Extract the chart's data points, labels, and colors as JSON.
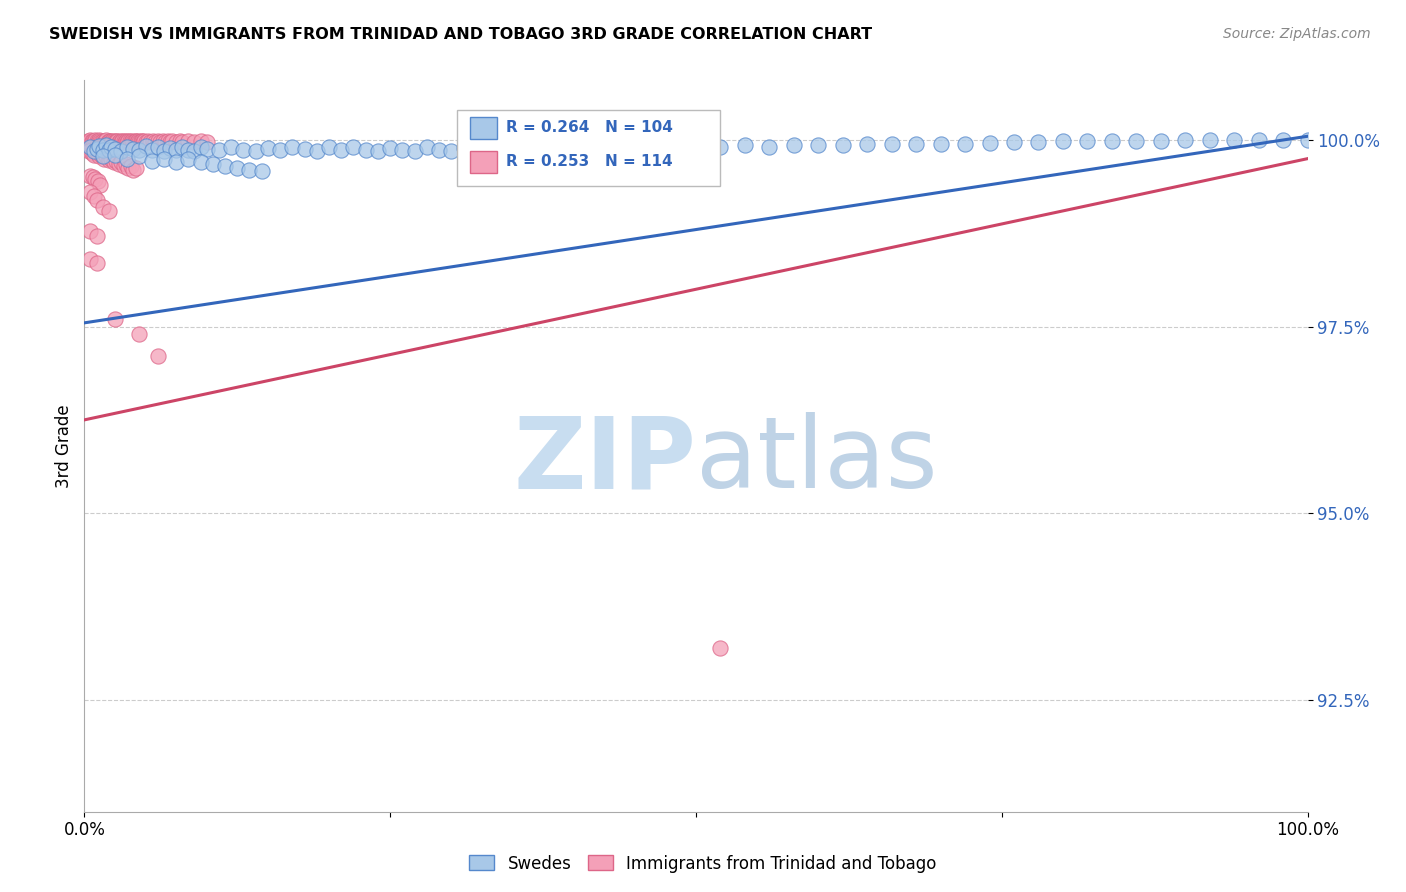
{
  "title": "SWEDISH VS IMMIGRANTS FROM TRINIDAD AND TOBAGO 3RD GRADE CORRELATION CHART",
  "source": "Source: ZipAtlas.com",
  "ylabel": "3rd Grade",
  "blue_R": 0.264,
  "blue_N": 104,
  "pink_R": 0.253,
  "pink_N": 114,
  "blue_color": "#a8c8e8",
  "pink_color": "#f4a0b8",
  "blue_edge_color": "#5588cc",
  "pink_edge_color": "#dd6688",
  "blue_line_color": "#3366bb",
  "pink_line_color": "#cc4466",
  "legend_blue_label": "Swedes",
  "legend_pink_label": "Immigrants from Trinidad and Tobago",
  "xmin": 0.0,
  "xmax": 1.0,
  "ymin": 0.91,
  "ymax": 1.008,
  "yticks": [
    0.925,
    0.95,
    0.975,
    1.0
  ],
  "ytick_labels": [
    "92.5%",
    "95.0%",
    "97.5%",
    "100.0%"
  ],
  "blue_trend_x": [
    0.0,
    1.0
  ],
  "blue_trend_y": [
    0.9755,
    1.0005
  ],
  "pink_trend_x": [
    0.0,
    1.0
  ],
  "pink_trend_y": [
    0.9625,
    0.9975
  ],
  "blue_scatter_x": [
    0.005,
    0.008,
    0.01,
    0.012,
    0.015,
    0.018,
    0.02,
    0.022,
    0.025,
    0.03,
    0.035,
    0.04,
    0.045,
    0.05,
    0.055,
    0.06,
    0.065,
    0.07,
    0.075,
    0.08,
    0.085,
    0.09,
    0.095,
    0.1,
    0.11,
    0.12,
    0.13,
    0.14,
    0.15,
    0.16,
    0.17,
    0.18,
    0.19,
    0.2,
    0.21,
    0.22,
    0.23,
    0.24,
    0.25,
    0.26,
    0.27,
    0.28,
    0.29,
    0.3,
    0.31,
    0.32,
    0.33,
    0.34,
    0.35,
    0.36,
    0.37,
    0.38,
    0.39,
    0.4,
    0.41,
    0.42,
    0.43,
    0.44,
    0.45,
    0.46,
    0.47,
    0.48,
    0.49,
    0.5,
    0.52,
    0.54,
    0.56,
    0.58,
    0.6,
    0.62,
    0.64,
    0.66,
    0.68,
    0.7,
    0.72,
    0.74,
    0.76,
    0.78,
    0.8,
    0.82,
    0.84,
    0.86,
    0.88,
    0.9,
    0.92,
    0.94,
    0.96,
    0.98,
    1.0,
    0.015,
    0.025,
    0.035,
    0.045,
    0.055,
    0.065,
    0.075,
    0.085,
    0.095,
    0.105,
    0.115,
    0.125,
    0.135,
    0.145
  ],
  "blue_scatter_y": [
    0.999,
    0.9985,
    0.9988,
    0.9992,
    0.9987,
    0.9993,
    0.9986,
    0.9991,
    0.9988,
    0.9985,
    0.999,
    0.9988,
    0.9986,
    0.9992,
    0.9987,
    0.9991,
    0.9985,
    0.9989,
    0.9986,
    0.9991,
    0.9987,
    0.9985,
    0.999,
    0.9988,
    0.9986,
    0.9991,
    0.9987,
    0.9985,
    0.9989,
    0.9986,
    0.9991,
    0.9988,
    0.9985,
    0.999,
    0.9986,
    0.9991,
    0.9987,
    0.9985,
    0.9989,
    0.9987,
    0.9985,
    0.999,
    0.9987,
    0.9985,
    0.9989,
    0.9987,
    0.9986,
    0.9991,
    0.9988,
    0.9986,
    0.9991,
    0.9988,
    0.9986,
    0.9991,
    0.9989,
    0.9987,
    0.999,
    0.9988,
    0.9992,
    0.999,
    0.9988,
    0.9992,
    0.999,
    0.9993,
    0.9991,
    0.9993,
    0.9991,
    0.9993,
    0.9993,
    0.9993,
    0.9994,
    0.9994,
    0.9994,
    0.9995,
    0.9995,
    0.9996,
    0.9997,
    0.9997,
    0.9998,
    0.9998,
    0.9998,
    0.9999,
    0.9999,
    1.0,
    1.0,
    1.0,
    1.0,
    1.0,
    1.0,
    0.9978,
    0.998,
    0.9975,
    0.9978,
    0.9972,
    0.9975,
    0.997,
    0.9974,
    0.997,
    0.9968,
    0.9965,
    0.9963,
    0.996,
    0.9958
  ],
  "pink_scatter_x": [
    0.003,
    0.004,
    0.005,
    0.006,
    0.007,
    0.008,
    0.009,
    0.01,
    0.011,
    0.012,
    0.013,
    0.014,
    0.015,
    0.016,
    0.017,
    0.018,
    0.019,
    0.02,
    0.021,
    0.022,
    0.023,
    0.024,
    0.025,
    0.026,
    0.027,
    0.028,
    0.029,
    0.03,
    0.031,
    0.032,
    0.033,
    0.034,
    0.035,
    0.036,
    0.037,
    0.038,
    0.039,
    0.04,
    0.041,
    0.042,
    0.043,
    0.044,
    0.045,
    0.046,
    0.047,
    0.048,
    0.049,
    0.05,
    0.052,
    0.054,
    0.056,
    0.058,
    0.06,
    0.062,
    0.064,
    0.066,
    0.068,
    0.07,
    0.072,
    0.075,
    0.078,
    0.08,
    0.085,
    0.09,
    0.095,
    0.1,
    0.004,
    0.006,
    0.008,
    0.01,
    0.012,
    0.014,
    0.016,
    0.018,
    0.02,
    0.022,
    0.024,
    0.026,
    0.028,
    0.03,
    0.032,
    0.034,
    0.036,
    0.038,
    0.04,
    0.042,
    0.005,
    0.007,
    0.009,
    0.011,
    0.013,
    0.005,
    0.008,
    0.01,
    0.015,
    0.02,
    0.005,
    0.01,
    0.005,
    0.01,
    0.025,
    0.045,
    0.06,
    0.52
  ],
  "pink_scatter_y": [
    0.9998,
    0.9997,
    1.0,
    0.9998,
    0.9999,
    0.9997,
    1.0,
    0.9998,
    0.9997,
    1.0,
    0.9998,
    0.9997,
    0.9999,
    0.9997,
    0.9998,
    1.0,
    0.9997,
    0.9998,
    0.9999,
    0.9997,
    0.9998,
    0.9999,
    0.9997,
    0.9998,
    0.9999,
    0.9997,
    0.9998,
    0.9997,
    0.9998,
    0.9999,
    0.9997,
    0.9998,
    0.9997,
    0.9998,
    0.9999,
    0.9997,
    0.9998,
    0.9997,
    0.9998,
    0.9999,
    0.9997,
    0.9998,
    0.9997,
    0.9998,
    0.9999,
    0.9997,
    0.9998,
    0.9997,
    0.9998,
    0.9997,
    0.9998,
    0.9997,
    0.9998,
    0.9997,
    0.9998,
    0.9997,
    0.9998,
    0.9997,
    0.9998,
    0.9997,
    0.9998,
    0.9997,
    0.9998,
    0.9997,
    0.9998,
    0.9997,
    0.9985,
    0.9983,
    0.998,
    0.9982,
    0.9978,
    0.998,
    0.9975,
    0.9978,
    0.9973,
    0.9975,
    0.997,
    0.9972,
    0.9968,
    0.997,
    0.9965,
    0.9968,
    0.9963,
    0.9965,
    0.996,
    0.9962,
    0.9952,
    0.995,
    0.9948,
    0.9945,
    0.994,
    0.993,
    0.9925,
    0.992,
    0.991,
    0.9905,
    0.9878,
    0.9872,
    0.984,
    0.9835,
    0.976,
    0.974,
    0.971,
    0.932
  ]
}
